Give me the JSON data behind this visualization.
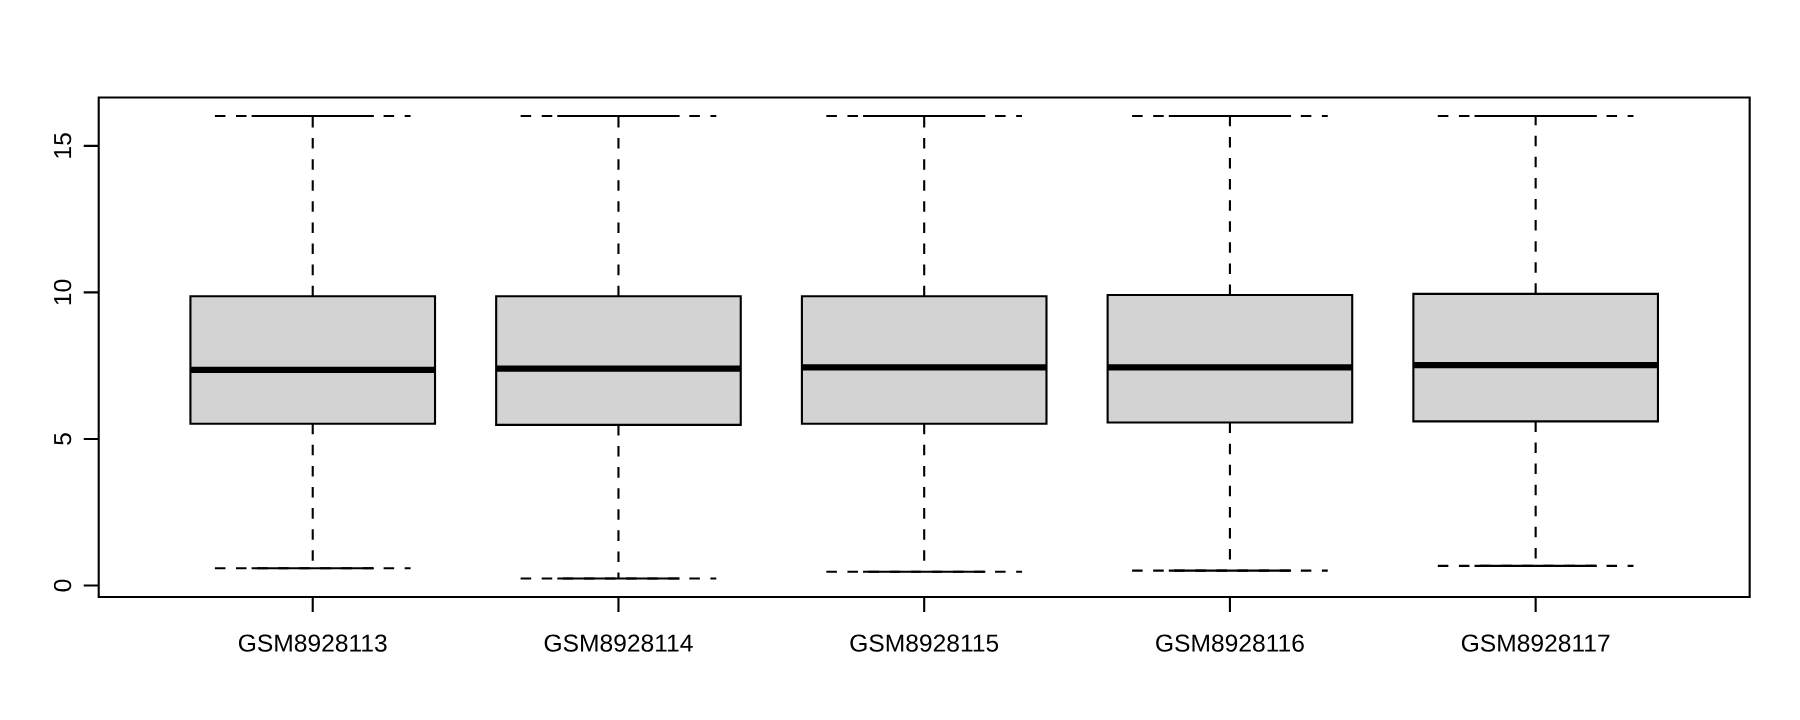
{
  "chart_data": {
    "type": "box",
    "categories": [
      "GSM8928113",
      "GSM8928114",
      "GSM8928115",
      "GSM8928116",
      "GSM8928117"
    ],
    "boxes": [
      {
        "low": 0.59,
        "q1": 5.52,
        "median": 7.36,
        "q3": 9.87,
        "high": 16.02
      },
      {
        "low": 0.24,
        "q1": 5.48,
        "median": 7.4,
        "q3": 9.87,
        "high": 16.02
      },
      {
        "low": 0.47,
        "q1": 5.52,
        "median": 7.44,
        "q3": 9.87,
        "high": 16.02
      },
      {
        "low": 0.51,
        "q1": 5.56,
        "median": 7.44,
        "q3": 9.91,
        "high": 16.02
      },
      {
        "low": 0.67,
        "q1": 5.6,
        "median": 7.52,
        "q3": 9.95,
        "high": 16.02
      }
    ],
    "color": "#d3d3d3",
    "ylim": [
      -0.39,
      16.65
    ],
    "yticks": [
      0,
      5,
      10,
      15
    ]
  }
}
